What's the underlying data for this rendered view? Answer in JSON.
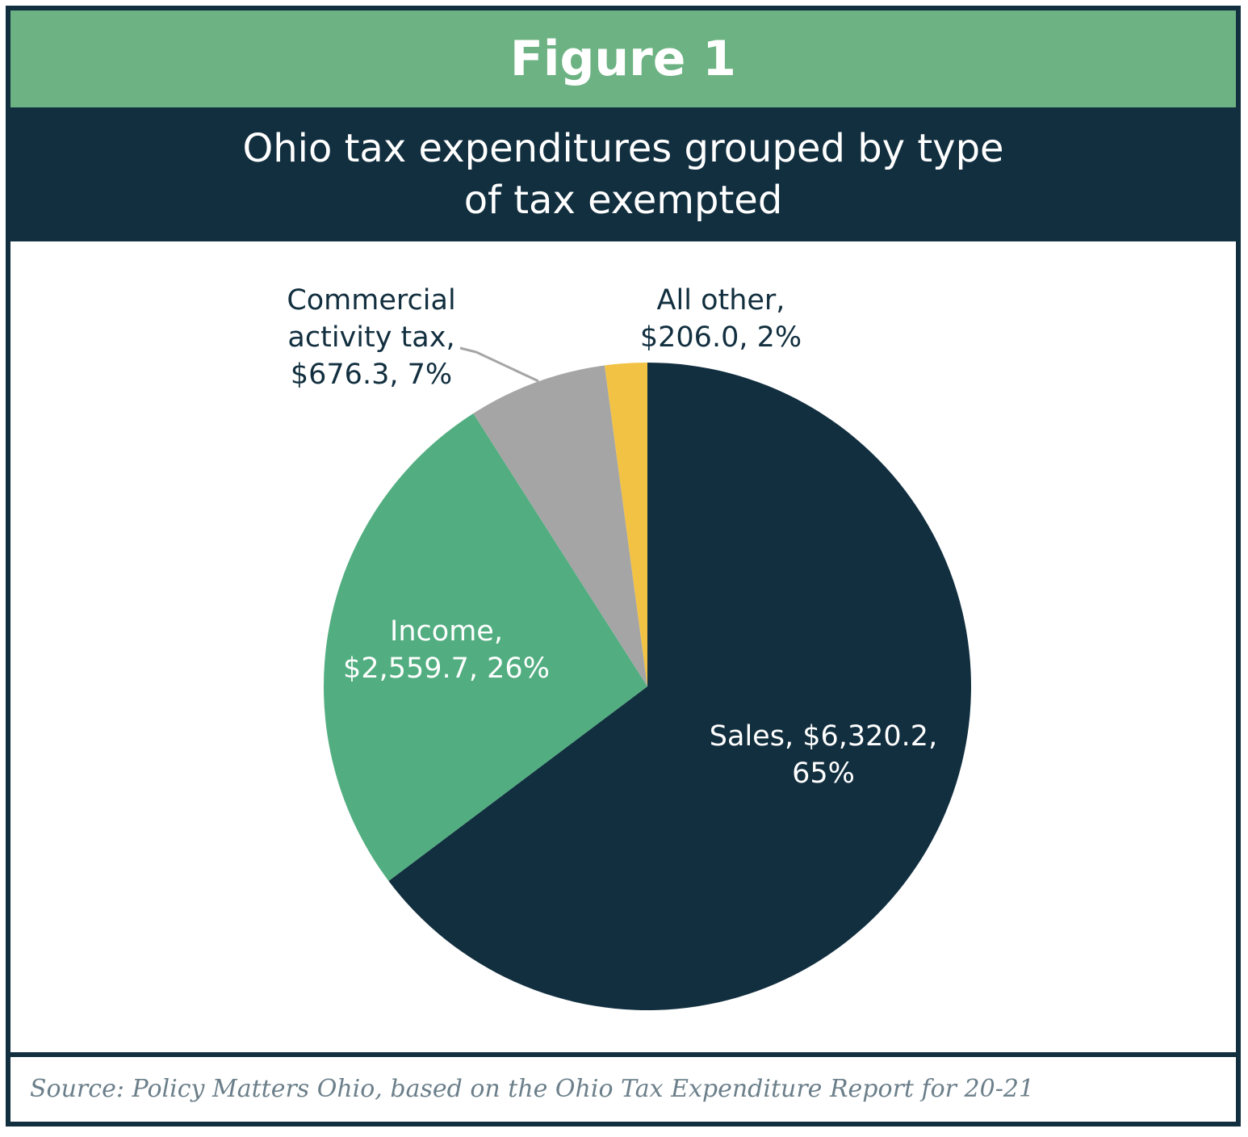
{
  "figure_label": "Figure 1",
  "title_line1": "Ohio tax expenditures grouped by type",
  "title_line2": "of tax exempted",
  "source": "Source: Policy Matters Ohio, based on the Ohio Tax Expenditure Report for 20-21",
  "chart_data": {
    "type": "pie",
    "title": "Ohio tax expenditures grouped by type of tax exempted",
    "slices": [
      {
        "category": "Sales",
        "value": 6320.2,
        "percent": 65,
        "color": "#122f3f",
        "label_lines": [
          "Sales, $6,320.2,",
          "65%"
        ]
      },
      {
        "category": "Income",
        "value": 2559.7,
        "percent": 26,
        "color": "#52ae81",
        "label_lines": [
          "Income,",
          "$2,559.7, 26%"
        ]
      },
      {
        "category": "Commercial activity tax",
        "value": 676.3,
        "percent": 7,
        "color": "#a5a5a5",
        "label_lines": [
          "Commercial",
          "activity tax,",
          "$676.3, 7%"
        ]
      },
      {
        "category": "All other",
        "value": 206.0,
        "percent": 2,
        "color": "#f2c245",
        "label_lines": [
          "All other,",
          "$206.0, 2%"
        ]
      }
    ]
  }
}
